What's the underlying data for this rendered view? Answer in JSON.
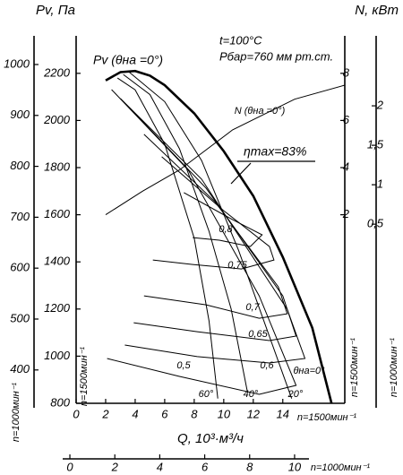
{
  "chart_data": {
    "type": "line",
    "axis_titles": {
      "y": "Pv, Па",
      "y2": "N, кВт",
      "x": "Q, 10³·м³/ч"
    },
    "speed_labels": [
      "n=1500мин⁻¹",
      "n=1000мин⁻¹"
    ],
    "annotations": [
      "Pv (θна =0°)",
      "t=100°C",
      "Pбар=760 мм рт.ст.",
      "ηmax=83%"
    ],
    "xlim": [
      0,
      18.2
    ],
    "xticks": [
      0,
      2,
      4,
      6,
      8,
      10,
      12,
      14
    ],
    "ylim": [
      800,
      2340
    ],
    "yticks": [
      800,
      1000,
      1200,
      1400,
      1600,
      1800,
      2000,
      2200
    ],
    "y2lim": [
      -6,
      9.4
    ],
    "y2ticks": [
      2,
      4,
      6,
      8
    ],
    "y3lim": [
      334.5,
      1047.5
    ],
    "y3ticks": [
      400,
      500,
      600,
      700,
      800,
      900,
      1000
    ],
    "y4lim": [
      -1.77,
      2.83
    ],
    "y4ticks": [
      {
        "value": 0.5,
        "label": "0,5"
      },
      1,
      {
        "value": 1.5,
        "label": "1,5"
      },
      2
    ],
    "x2lim": [
      -0.32,
      10.64
    ],
    "x2ticks": [
      0,
      2,
      4,
      6,
      8,
      10
    ],
    "series": [
      {
        "name": "θна=0°",
        "color": "#000000",
        "x": [
          2,
          3,
          4,
          5,
          6,
          8,
          10,
          12,
          14,
          16,
          17.3
        ],
        "values": [
          2170,
          2205,
          2210,
          2190,
          2150,
          2030,
          1870,
          1680,
          1420,
          1120,
          800
        ]
      },
      {
        "name": "N (θна =0°)",
        "color": "#000000",
        "axis": "y2",
        "x": [
          2,
          4.5,
          7,
          10.6,
          14.8,
          18.2
        ],
        "values": [
          2,
          3,
          3.9,
          5.6,
          6.9,
          7.5
        ]
      },
      {
        "name": "60°",
        "color": "#000000",
        "x": [
          2.8,
          4,
          6,
          8,
          9,
          9.6
        ],
        "values": [
          2180,
          2130,
          1900,
          1500,
          1150,
          820
        ]
      },
      {
        "name": "40°",
        "color": "#000000",
        "x": [
          3.2,
          5,
          7,
          9,
          10.5,
          11.6
        ],
        "values": [
          2195,
          2110,
          1880,
          1530,
          1200,
          850
        ]
      },
      {
        "name": "20°",
        "color": "#000000",
        "x": [
          3.6,
          6,
          8.5,
          11,
          13,
          14.6
        ],
        "values": [
          2205,
          2080,
          1830,
          1450,
          1100,
          820
        ]
      },
      {
        "name": "0,8",
        "color": "#000000",
        "x": [
          7.3,
          10.6,
          12.6,
          11.8,
          9.7,
          7.9
        ],
        "values": [
          1694,
          1579,
          1515,
          1465,
          1492,
          1503
        ]
      },
      {
        "name": "0,75",
        "color": "#000000",
        "x": [
          5.8,
          10,
          13.1,
          13.4,
          11.2,
          7.9,
          5.2
        ],
        "values": [
          1846,
          1617,
          1465,
          1408,
          1370,
          1389,
          1408
        ]
      },
      {
        "name": "0,7",
        "color": "#000000",
        "x": [
          4.6,
          9.4,
          13.7,
          14.3,
          12.4,
          8.8,
          4.6
        ],
        "values": [
          1941,
          1656,
          1294,
          1180,
          1161,
          1218,
          1256
        ]
      },
      {
        "name": "0,65",
        "color": "#000000",
        "x": [
          3.6,
          8.8,
          14,
          14.9,
          13.1,
          8.2,
          3.9
        ],
        "values": [
          2055,
          1713,
          1256,
          1085,
          1066,
          1104,
          1142
        ]
      },
      {
        "name": "0,6",
        "color": "#000000",
        "x": [
          3,
          8.5,
          14.3,
          15.5,
          13.1,
          8.2,
          3.3
        ],
        "values": [
          2093,
          1751,
          1199,
          990,
          971,
          998,
          1047
        ]
      },
      {
        "name": "0,5",
        "color": "#000000",
        "x": [
          2.4,
          7.6,
          12.4,
          14.9,
          12.4,
          7,
          2.1
        ],
        "values": [
          2131,
          1789,
          1256,
          876,
          838,
          914,
          990
        ]
      }
    ]
  }
}
